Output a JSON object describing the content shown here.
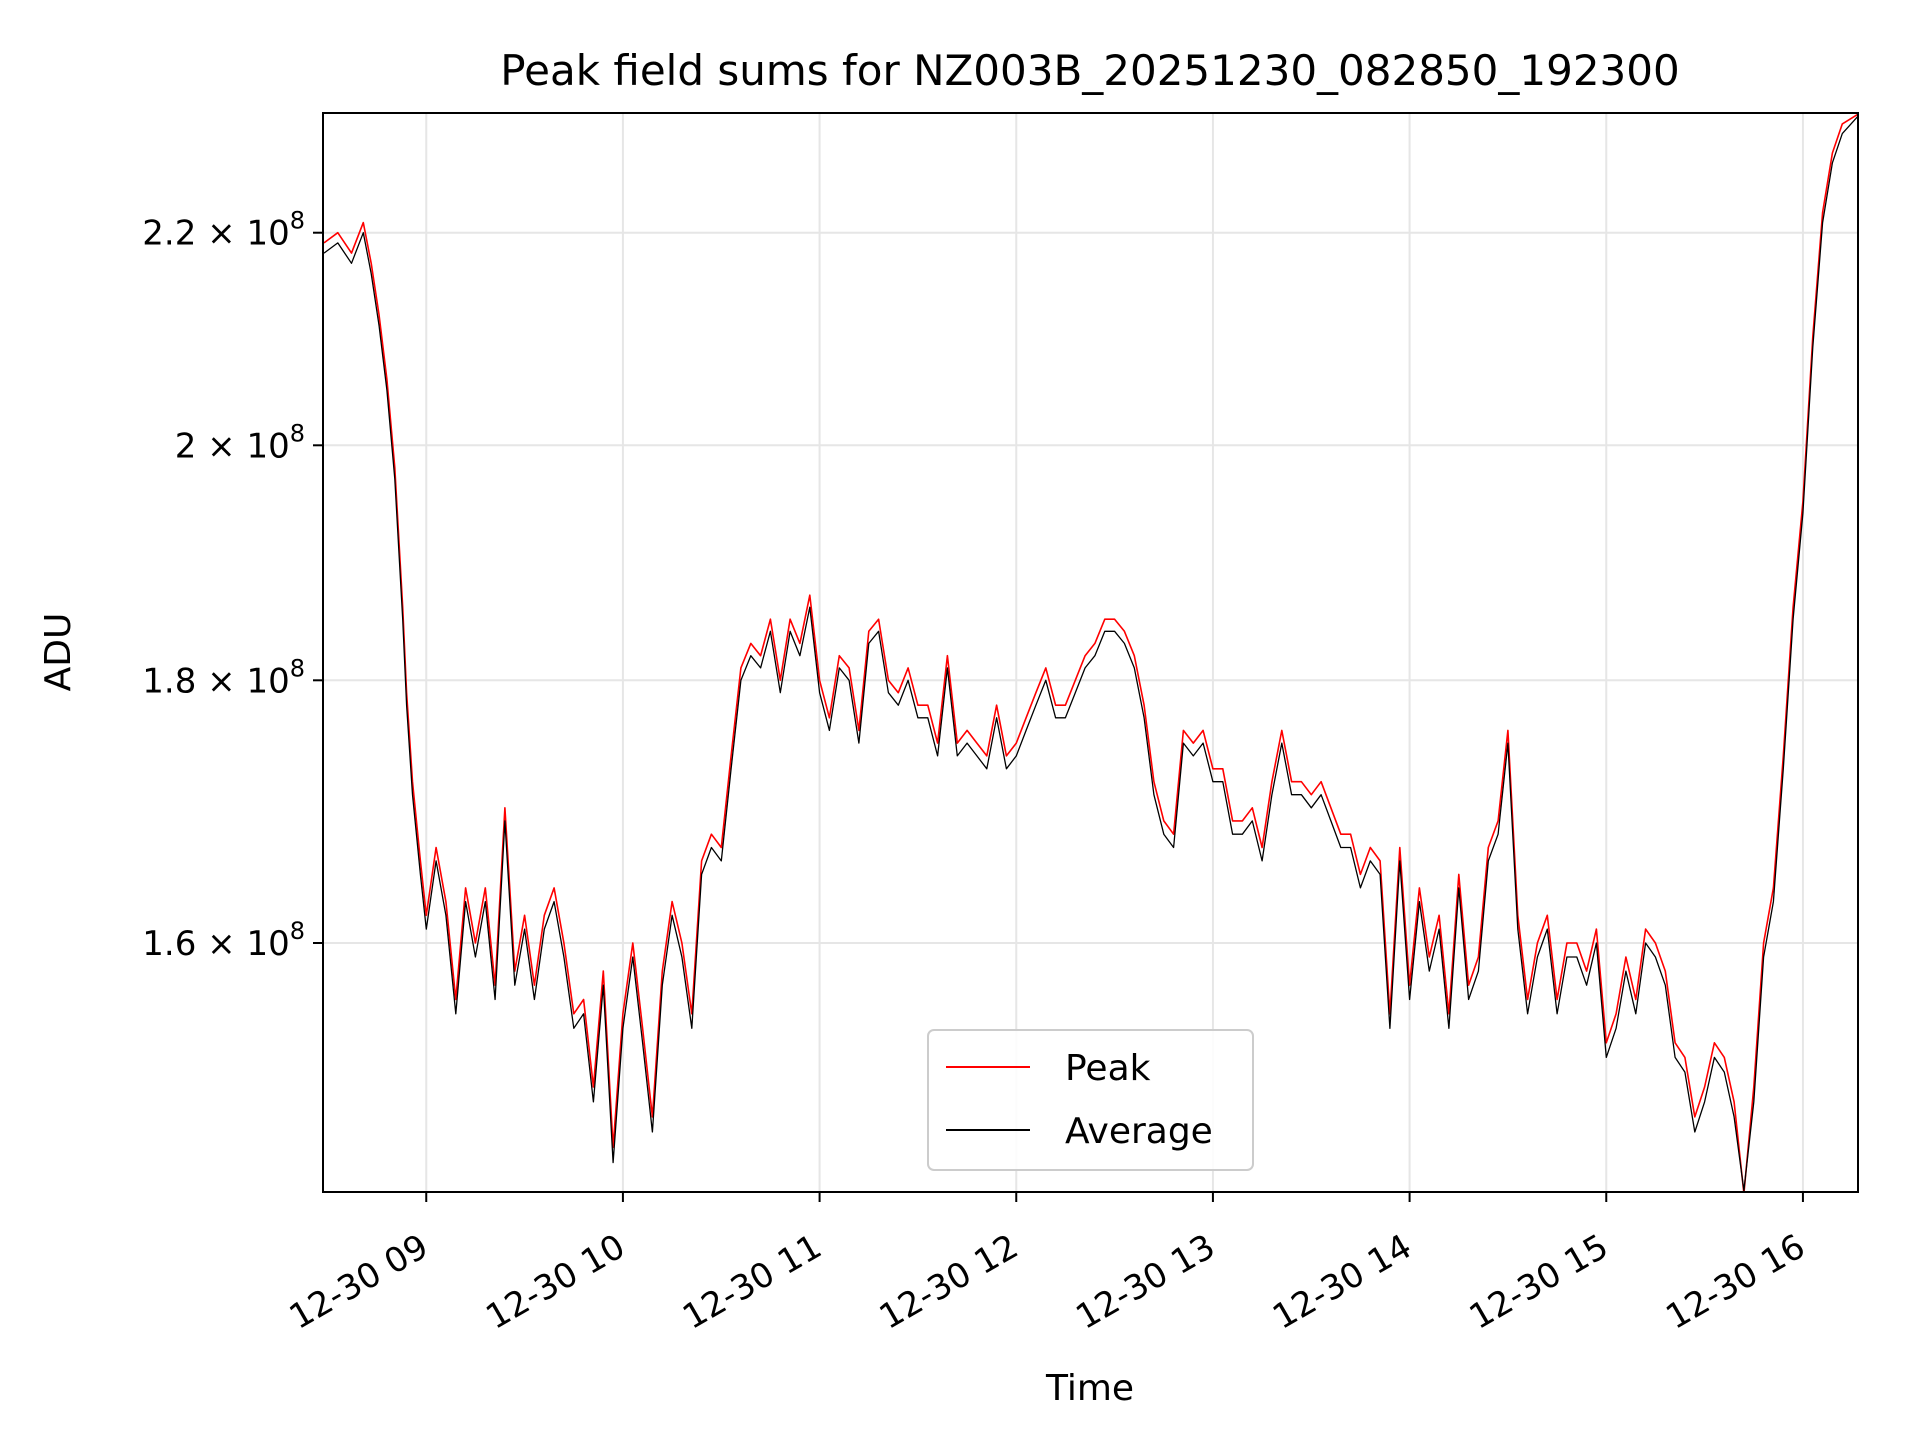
{
  "chart_data": {
    "type": "line",
    "title": "Peak field sums for NZ003B_20251230_082850_192300",
    "xlabel": "Time",
    "ylabel": "ADU",
    "x_unit": "hours (decimal, 2025-12-30)",
    "xlim": [
      8.475,
      16.28
    ],
    "ylim": [
      1.431,
      2.3213
    ],
    "y_scale": "log",
    "y_ticks": [
      {
        "value": 1.6,
        "mantissa": "1.6",
        "exp": "8"
      },
      {
        "value": 1.8,
        "mantissa": "1.8",
        "exp": "8"
      },
      {
        "value": 2.0,
        "mantissa": "2",
        "exp": "8"
      },
      {
        "value": 2.2,
        "mantissa": "2.2",
        "exp": "8"
      }
    ],
    "x_ticks": [
      {
        "value": 9,
        "label": "12-30 09"
      },
      {
        "value": 10,
        "label": "12-30 10"
      },
      {
        "value": 11,
        "label": "12-30 11"
      },
      {
        "value": 12,
        "label": "12-30 12"
      },
      {
        "value": 13,
        "label": "12-30 13"
      },
      {
        "value": 14,
        "label": "12-30 14"
      },
      {
        "value": 15,
        "label": "12-30 15"
      },
      {
        "value": 16,
        "label": "12-30 16"
      }
    ],
    "grid": true,
    "legend_position": "bottom-center",
    "series": [
      {
        "name": "Peak",
        "color": "#ff0000",
        "x": [
          8.48,
          8.55,
          8.62,
          8.68,
          8.72,
          8.76,
          8.8,
          8.84,
          8.88,
          8.9,
          8.93,
          8.97,
          9.0,
          9.05,
          9.1,
          9.15,
          9.2,
          9.25,
          9.3,
          9.35,
          9.4,
          9.45,
          9.5,
          9.55,
          9.6,
          9.65,
          9.7,
          9.75,
          9.8,
          9.85,
          9.9,
          9.95,
          10.0,
          10.05,
          10.1,
          10.15,
          10.2,
          10.25,
          10.3,
          10.35,
          10.4,
          10.45,
          10.5,
          10.55,
          10.6,
          10.65,
          10.7,
          10.75,
          10.8,
          10.85,
          10.9,
          10.95,
          11.0,
          11.05,
          11.1,
          11.15,
          11.2,
          11.25,
          11.3,
          11.35,
          11.4,
          11.45,
          11.5,
          11.55,
          11.6,
          11.65,
          11.7,
          11.75,
          11.8,
          11.85,
          11.9,
          11.95,
          12.0,
          12.05,
          12.1,
          12.15,
          12.2,
          12.25,
          12.3,
          12.35,
          12.4,
          12.45,
          12.5,
          12.55,
          12.6,
          12.65,
          12.7,
          12.75,
          12.8,
          12.85,
          12.9,
          12.95,
          13.0,
          13.05,
          13.1,
          13.15,
          13.2,
          13.25,
          13.3,
          13.35,
          13.4,
          13.45,
          13.5,
          13.55,
          13.6,
          13.65,
          13.7,
          13.75,
          13.8,
          13.85,
          13.9,
          13.95,
          14.0,
          14.05,
          14.1,
          14.15,
          14.2,
          14.25,
          14.3,
          14.35,
          14.4,
          14.45,
          14.5,
          14.55,
          14.6,
          14.65,
          14.7,
          14.75,
          14.8,
          14.85,
          14.9,
          14.95,
          15.0,
          15.05,
          15.1,
          15.15,
          15.2,
          15.25,
          15.3,
          15.35,
          15.4,
          15.45,
          15.5,
          15.55,
          15.6,
          15.65,
          15.7,
          15.75,
          15.8,
          15.85,
          15.9,
          15.95,
          16.0,
          16.05,
          16.1,
          16.15,
          16.2,
          16.28
        ],
        "values": [
          2.19,
          2.2,
          2.18,
          2.21,
          2.17,
          2.12,
          2.06,
          1.98,
          1.86,
          1.79,
          1.72,
          1.66,
          1.62,
          1.67,
          1.63,
          1.56,
          1.64,
          1.6,
          1.64,
          1.57,
          1.7,
          1.58,
          1.62,
          1.57,
          1.62,
          1.64,
          1.6,
          1.55,
          1.56,
          1.5,
          1.58,
          1.46,
          1.55,
          1.6,
          1.54,
          1.48,
          1.58,
          1.63,
          1.6,
          1.55,
          1.66,
          1.68,
          1.67,
          1.74,
          1.81,
          1.83,
          1.82,
          1.85,
          1.8,
          1.85,
          1.83,
          1.87,
          1.8,
          1.77,
          1.82,
          1.81,
          1.76,
          1.84,
          1.85,
          1.8,
          1.79,
          1.81,
          1.78,
          1.78,
          1.75,
          1.82,
          1.75,
          1.76,
          1.75,
          1.74,
          1.78,
          1.74,
          1.75,
          1.77,
          1.79,
          1.81,
          1.78,
          1.78,
          1.8,
          1.82,
          1.83,
          1.85,
          1.85,
          1.84,
          1.82,
          1.78,
          1.72,
          1.69,
          1.68,
          1.76,
          1.75,
          1.76,
          1.73,
          1.73,
          1.69,
          1.69,
          1.7,
          1.67,
          1.72,
          1.76,
          1.72,
          1.72,
          1.71,
          1.72,
          1.7,
          1.68,
          1.68,
          1.65,
          1.67,
          1.66,
          1.55,
          1.67,
          1.57,
          1.64,
          1.59,
          1.62,
          1.55,
          1.65,
          1.57,
          1.59,
          1.67,
          1.69,
          1.76,
          1.62,
          1.56,
          1.6,
          1.62,
          1.56,
          1.6,
          1.6,
          1.58,
          1.61,
          1.53,
          1.55,
          1.59,
          1.56,
          1.61,
          1.6,
          1.58,
          1.53,
          1.52,
          1.48,
          1.5,
          1.53,
          1.52,
          1.49,
          1.43,
          1.5,
          1.6,
          1.64,
          1.74,
          1.86,
          1.95,
          2.1,
          2.22,
          2.28,
          2.31,
          2.32
        ]
      },
      {
        "name": "Average",
        "color": "#000000",
        "x": [
          8.48,
          8.55,
          8.62,
          8.68,
          8.72,
          8.76,
          8.8,
          8.84,
          8.88,
          8.9,
          8.93,
          8.97,
          9.0,
          9.05,
          9.1,
          9.15,
          9.2,
          9.25,
          9.3,
          9.35,
          9.4,
          9.45,
          9.5,
          9.55,
          9.6,
          9.65,
          9.7,
          9.75,
          9.8,
          9.85,
          9.9,
          9.95,
          10.0,
          10.05,
          10.1,
          10.15,
          10.2,
          10.25,
          10.3,
          10.35,
          10.4,
          10.45,
          10.5,
          10.55,
          10.6,
          10.65,
          10.7,
          10.75,
          10.8,
          10.85,
          10.9,
          10.95,
          11.0,
          11.05,
          11.1,
          11.15,
          11.2,
          11.25,
          11.3,
          11.35,
          11.4,
          11.45,
          11.5,
          11.55,
          11.6,
          11.65,
          11.7,
          11.75,
          11.8,
          11.85,
          11.9,
          11.95,
          12.0,
          12.05,
          12.1,
          12.15,
          12.2,
          12.25,
          12.3,
          12.35,
          12.4,
          12.45,
          12.5,
          12.55,
          12.6,
          12.65,
          12.7,
          12.75,
          12.8,
          12.85,
          12.9,
          12.95,
          13.0,
          13.05,
          13.1,
          13.15,
          13.2,
          13.25,
          13.3,
          13.35,
          13.4,
          13.45,
          13.5,
          13.55,
          13.6,
          13.65,
          13.7,
          13.75,
          13.8,
          13.85,
          13.9,
          13.95,
          14.0,
          14.05,
          14.1,
          14.15,
          14.2,
          14.25,
          14.3,
          14.35,
          14.4,
          14.45,
          14.5,
          14.55,
          14.6,
          14.65,
          14.7,
          14.75,
          14.8,
          14.85,
          14.9,
          14.95,
          15.0,
          15.05,
          15.1,
          15.15,
          15.2,
          15.25,
          15.3,
          15.35,
          15.4,
          15.45,
          15.5,
          15.55,
          15.6,
          15.65,
          15.7,
          15.75,
          15.8,
          15.85,
          15.9,
          15.95,
          16.0,
          16.05,
          16.1,
          16.15,
          16.2,
          16.28
        ],
        "values": [
          2.18,
          2.19,
          2.17,
          2.2,
          2.16,
          2.11,
          2.05,
          1.97,
          1.85,
          1.78,
          1.71,
          1.65,
          1.61,
          1.66,
          1.62,
          1.55,
          1.63,
          1.59,
          1.63,
          1.56,
          1.69,
          1.57,
          1.61,
          1.56,
          1.61,
          1.63,
          1.59,
          1.54,
          1.55,
          1.49,
          1.57,
          1.45,
          1.54,
          1.59,
          1.53,
          1.47,
          1.57,
          1.62,
          1.59,
          1.54,
          1.65,
          1.67,
          1.66,
          1.73,
          1.8,
          1.82,
          1.81,
          1.84,
          1.79,
          1.84,
          1.82,
          1.86,
          1.79,
          1.76,
          1.81,
          1.8,
          1.75,
          1.83,
          1.84,
          1.79,
          1.78,
          1.8,
          1.77,
          1.77,
          1.74,
          1.81,
          1.74,
          1.75,
          1.74,
          1.73,
          1.77,
          1.73,
          1.74,
          1.76,
          1.78,
          1.8,
          1.77,
          1.77,
          1.79,
          1.81,
          1.82,
          1.84,
          1.84,
          1.83,
          1.81,
          1.77,
          1.71,
          1.68,
          1.67,
          1.75,
          1.74,
          1.75,
          1.72,
          1.72,
          1.68,
          1.68,
          1.69,
          1.66,
          1.71,
          1.75,
          1.71,
          1.71,
          1.7,
          1.71,
          1.69,
          1.67,
          1.67,
          1.64,
          1.66,
          1.65,
          1.54,
          1.66,
          1.56,
          1.63,
          1.58,
          1.61,
          1.54,
          1.64,
          1.56,
          1.58,
          1.66,
          1.68,
          1.75,
          1.61,
          1.55,
          1.59,
          1.61,
          1.55,
          1.59,
          1.59,
          1.57,
          1.6,
          1.52,
          1.54,
          1.58,
          1.55,
          1.6,
          1.59,
          1.57,
          1.52,
          1.51,
          1.47,
          1.49,
          1.52,
          1.51,
          1.48,
          1.432,
          1.49,
          1.59,
          1.63,
          1.73,
          1.85,
          1.94,
          2.09,
          2.21,
          2.27,
          2.3,
          2.318
        ]
      }
    ]
  }
}
